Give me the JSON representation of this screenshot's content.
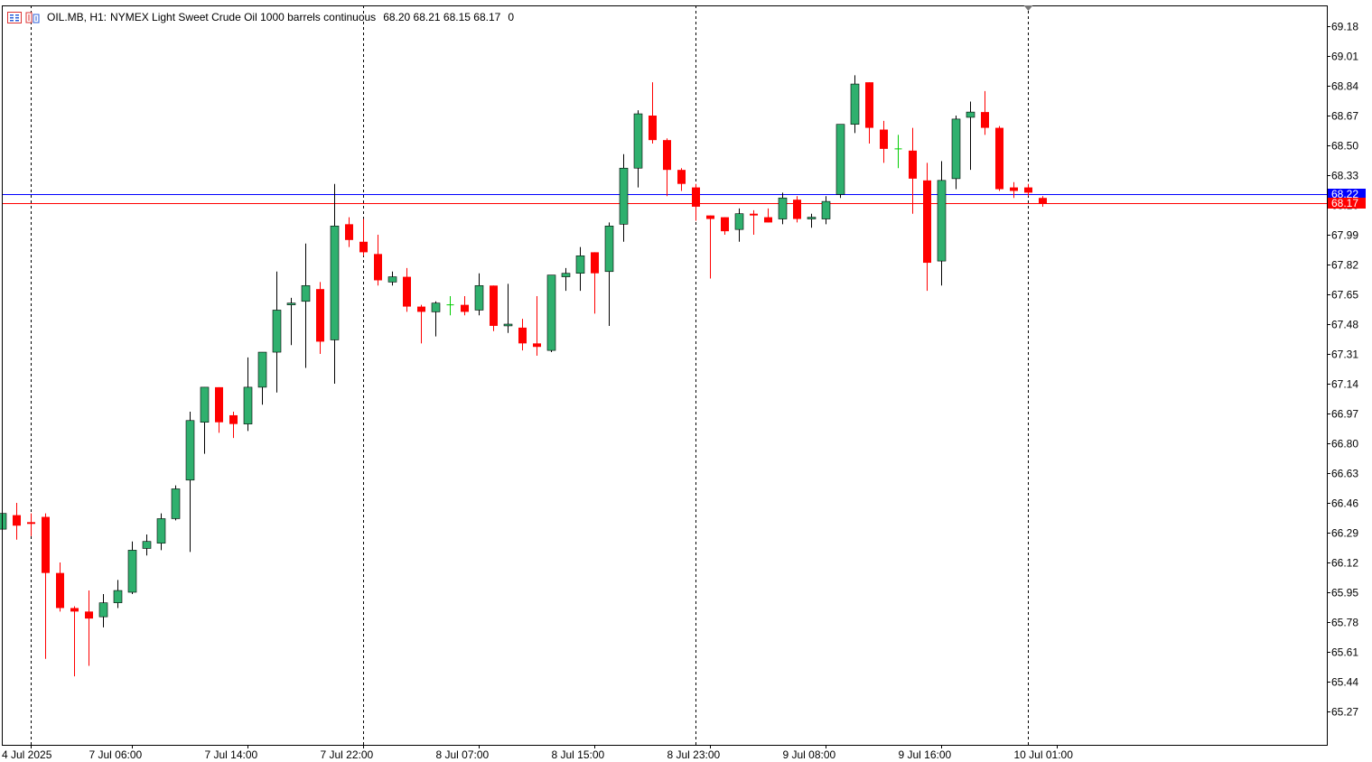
{
  "header": {
    "symbol": "OIL.MB, H1:",
    "description": "NYMEX Light Sweet Crude Oil 1000 barrels continuous",
    "ohlc": "68.20 68.21 68.15 68.17",
    "volume": "0",
    "icons": [
      "chart-list-icon",
      "one-click-trading-icon"
    ]
  },
  "colors": {
    "background": "#ffffff",
    "grid_vertical": "#000000",
    "axis": "#000000",
    "bull": "#2fb06e",
    "bear": "#ff0000",
    "doji": "#00cc00",
    "bid_line": "#0000ff",
    "ask_line": "#ff0000"
  },
  "chart_data": {
    "type": "candlestick",
    "timeframe": "H1",
    "series_name": "OIL.MB",
    "y_ticks": [
      "69.18",
      "69.01",
      "68.84",
      "68.67",
      "68.50",
      "68.33",
      "68.16",
      "67.99",
      "67.82",
      "67.65",
      "67.48",
      "67.31",
      "67.14",
      "66.97",
      "66.80",
      "66.63",
      "66.46",
      "66.29",
      "66.12",
      "65.95",
      "65.78",
      "65.61",
      "65.44",
      "65.27"
    ],
    "ylim": [
      65.1,
      69.3
    ],
    "x_tick_labels": [
      "4 Jul 2025",
      "7 Jul 06:00",
      "7 Jul 14:00",
      "7 Jul 22:00",
      "8 Jul 07:00",
      "8 Jul 15:00",
      "8 Jul 23:00",
      "9 Jul 08:00",
      "9 Jul 16:00",
      "10 Jul 01:00"
    ],
    "x_tick_bar_index": [
      2,
      9,
      17,
      25,
      33,
      41,
      49,
      57,
      65,
      73
    ],
    "period_separators_bar_index": [
      2,
      25,
      48,
      71
    ],
    "price_lines": [
      {
        "label": "68.22",
        "value": 68.22,
        "color": "#0000ff",
        "name": "bid"
      },
      {
        "label": "68.17",
        "value": 68.17,
        "color": "#ff0000",
        "name": "ask"
      }
    ],
    "candles": [
      [
        66.31,
        66.4,
        66.31,
        66.4
      ],
      [
        66.39,
        66.46,
        66.25,
        66.33
      ],
      [
        66.35,
        66.4,
        66.27,
        66.34
      ],
      [
        66.38,
        66.4,
        65.57,
        66.06
      ],
      [
        66.06,
        66.12,
        65.84,
        65.86
      ],
      [
        65.86,
        65.87,
        65.47,
        65.84
      ],
      [
        65.84,
        65.96,
        65.53,
        65.8
      ],
      [
        65.81,
        65.94,
        65.75,
        65.89
      ],
      [
        65.89,
        66.02,
        65.86,
        65.96
      ],
      [
        65.95,
        66.24,
        65.94,
        66.19
      ],
      [
        66.2,
        66.28,
        66.16,
        66.24
      ],
      [
        66.23,
        66.4,
        66.19,
        66.37
      ],
      [
        66.37,
        66.56,
        66.36,
        66.54
      ],
      [
        66.59,
        66.98,
        66.18,
        66.93
      ],
      [
        66.92,
        67.12,
        66.74,
        67.12
      ],
      [
        67.12,
        67.12,
        66.86,
        66.92
      ],
      [
        66.96,
        66.98,
        66.83,
        66.91
      ],
      [
        66.91,
        67.29,
        66.87,
        67.12
      ],
      [
        67.12,
        67.32,
        67.02,
        67.32
      ],
      [
        67.32,
        67.78,
        67.09,
        67.56
      ],
      [
        67.59,
        67.63,
        67.36,
        67.6
      ],
      [
        67.61,
        67.94,
        67.23,
        67.7
      ],
      [
        67.68,
        67.72,
        67.31,
        67.38
      ],
      [
        67.39,
        68.28,
        67.14,
        68.04
      ],
      [
        68.05,
        68.09,
        67.92,
        67.96
      ],
      [
        67.95,
        68.08,
        67.87,
        67.89
      ],
      [
        67.88,
        67.99,
        67.7,
        67.73
      ],
      [
        67.72,
        67.78,
        67.7,
        67.75
      ],
      [
        67.75,
        67.8,
        67.55,
        67.58
      ],
      [
        67.58,
        67.59,
        67.37,
        67.55
      ],
      [
        67.55,
        67.61,
        67.41,
        67.6
      ],
      [
        67.59,
        67.64,
        67.53,
        67.59
      ],
      [
        67.59,
        67.64,
        67.53,
        67.55
      ],
      [
        67.56,
        67.77,
        67.53,
        67.7
      ],
      [
        67.7,
        67.7,
        67.44,
        67.47
      ],
      [
        67.47,
        67.71,
        67.43,
        67.48
      ],
      [
        67.46,
        67.51,
        67.33,
        67.37
      ],
      [
        67.37,
        67.64,
        67.3,
        67.35
      ],
      [
        67.33,
        67.76,
        67.32,
        67.76
      ],
      [
        67.75,
        67.8,
        67.67,
        67.77
      ],
      [
        67.77,
        67.92,
        67.67,
        67.87
      ],
      [
        67.89,
        67.89,
        67.54,
        67.77
      ],
      [
        67.78,
        68.06,
        67.47,
        68.04
      ],
      [
        68.05,
        68.45,
        67.95,
        68.37
      ],
      [
        68.37,
        68.7,
        68.26,
        68.68
      ],
      [
        68.67,
        68.86,
        68.51,
        68.53
      ],
      [
        68.53,
        68.54,
        68.21,
        68.36
      ],
      [
        68.36,
        68.37,
        68.24,
        68.28
      ],
      [
        68.26,
        68.28,
        68.07,
        68.15
      ],
      [
        68.1,
        68.1,
        67.74,
        68.08
      ],
      [
        68.09,
        68.09,
        67.99,
        68.01
      ],
      [
        68.02,
        68.14,
        67.95,
        68.11
      ],
      [
        68.11,
        68.13,
        67.99,
        68.1
      ],
      [
        68.09,
        68.14,
        68.06,
        68.06
      ],
      [
        68.08,
        68.23,
        68.05,
        68.2
      ],
      [
        68.19,
        68.21,
        68.06,
        68.08
      ],
      [
        68.08,
        68.11,
        68.03,
        68.09
      ],
      [
        68.08,
        68.21,
        68.05,
        68.18
      ],
      [
        68.22,
        68.62,
        68.2,
        68.62
      ],
      [
        68.62,
        68.9,
        68.57,
        68.85
      ],
      [
        68.86,
        68.86,
        68.51,
        68.6
      ],
      [
        68.59,
        68.64,
        68.4,
        68.48
      ],
      [
        68.48,
        68.56,
        68.37,
        68.48
      ],
      [
        68.47,
        68.6,
        68.11,
        68.31
      ],
      [
        68.3,
        68.4,
        67.67,
        67.83
      ],
      [
        67.84,
        68.41,
        67.7,
        68.3
      ],
      [
        68.31,
        68.67,
        68.25,
        68.65
      ],
      [
        68.66,
        68.75,
        68.36,
        68.69
      ],
      [
        68.69,
        68.81,
        68.56,
        68.6
      ],
      [
        68.6,
        68.61,
        68.24,
        68.25
      ],
      [
        68.26,
        68.29,
        68.2,
        68.24
      ],
      [
        68.26,
        68.28,
        68.21,
        68.23
      ],
      [
        68.2,
        68.21,
        68.15,
        68.17
      ]
    ]
  }
}
